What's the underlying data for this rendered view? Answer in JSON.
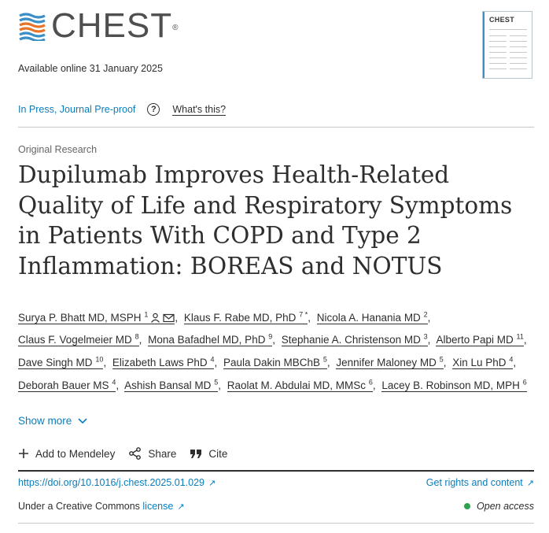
{
  "journal": {
    "name": "CHEST",
    "registered_mark": "®",
    "thumb_title": "CHEST"
  },
  "availability": "Available online 31 January 2025",
  "status": {
    "label": "In Press, Journal Pre-proof",
    "help_icon": "question-circle-icon",
    "whats_this": "What's this?"
  },
  "article": {
    "type": "Original Research",
    "title": "Dupilumab Improves Health-Related Quality of Life and Respiratory Symptoms in Patients With COPD and Type 2 Inflammation: BOREAS and NOTUS"
  },
  "authors": [
    {
      "name": "Surya P. Bhatt MD, MSPH",
      "sup": "1",
      "icons": [
        "person-icon",
        "envelope-icon"
      ]
    },
    {
      "name": "Klaus F. Rabe MD, PhD",
      "sup": "7 *"
    },
    {
      "name": "Nicola A. Hanania MD",
      "sup": "2"
    },
    {
      "name": "Claus F. Vogelmeier MD",
      "sup": "8"
    },
    {
      "name": "Mona Bafadhel MD, PhD",
      "sup": "9"
    },
    {
      "name": "Stephanie A. Christenson MD",
      "sup": "3"
    },
    {
      "name": "Alberto Papi MD",
      "sup": "11"
    },
    {
      "name": "Dave Singh MD",
      "sup": "10"
    },
    {
      "name": "Elizabeth Laws PhD",
      "sup": "4"
    },
    {
      "name": "Paula Dakin MBChB",
      "sup": "5"
    },
    {
      "name": "Jennifer Maloney MD",
      "sup": "5"
    },
    {
      "name": "Xin Lu PhD",
      "sup": "4"
    },
    {
      "name": "Deborah Bauer MS",
      "sup": "4"
    },
    {
      "name": "Ashish Bansal MD",
      "sup": "5"
    },
    {
      "name": "Raolat M. Abdulai MD, MMSc",
      "sup": "6"
    },
    {
      "name": "Lacey B. Robinson MD, MPH",
      "sup": "6"
    }
  ],
  "show_more": "Show more",
  "actions": {
    "mendeley": "Add to Mendeley",
    "share": "Share",
    "cite": "Cite"
  },
  "doi": "https://doi.org/10.1016/j.chest.2025.01.029",
  "rights": "Get rights and content",
  "license": {
    "prefix": "Under a Creative Commons",
    "link": "license"
  },
  "access": "Open access",
  "colors": {
    "link": "#0c7dbb",
    "open_access_dot": "#2ea34f",
    "logo_blue": "#3c8fc6",
    "logo_orange": "#e8742a"
  }
}
